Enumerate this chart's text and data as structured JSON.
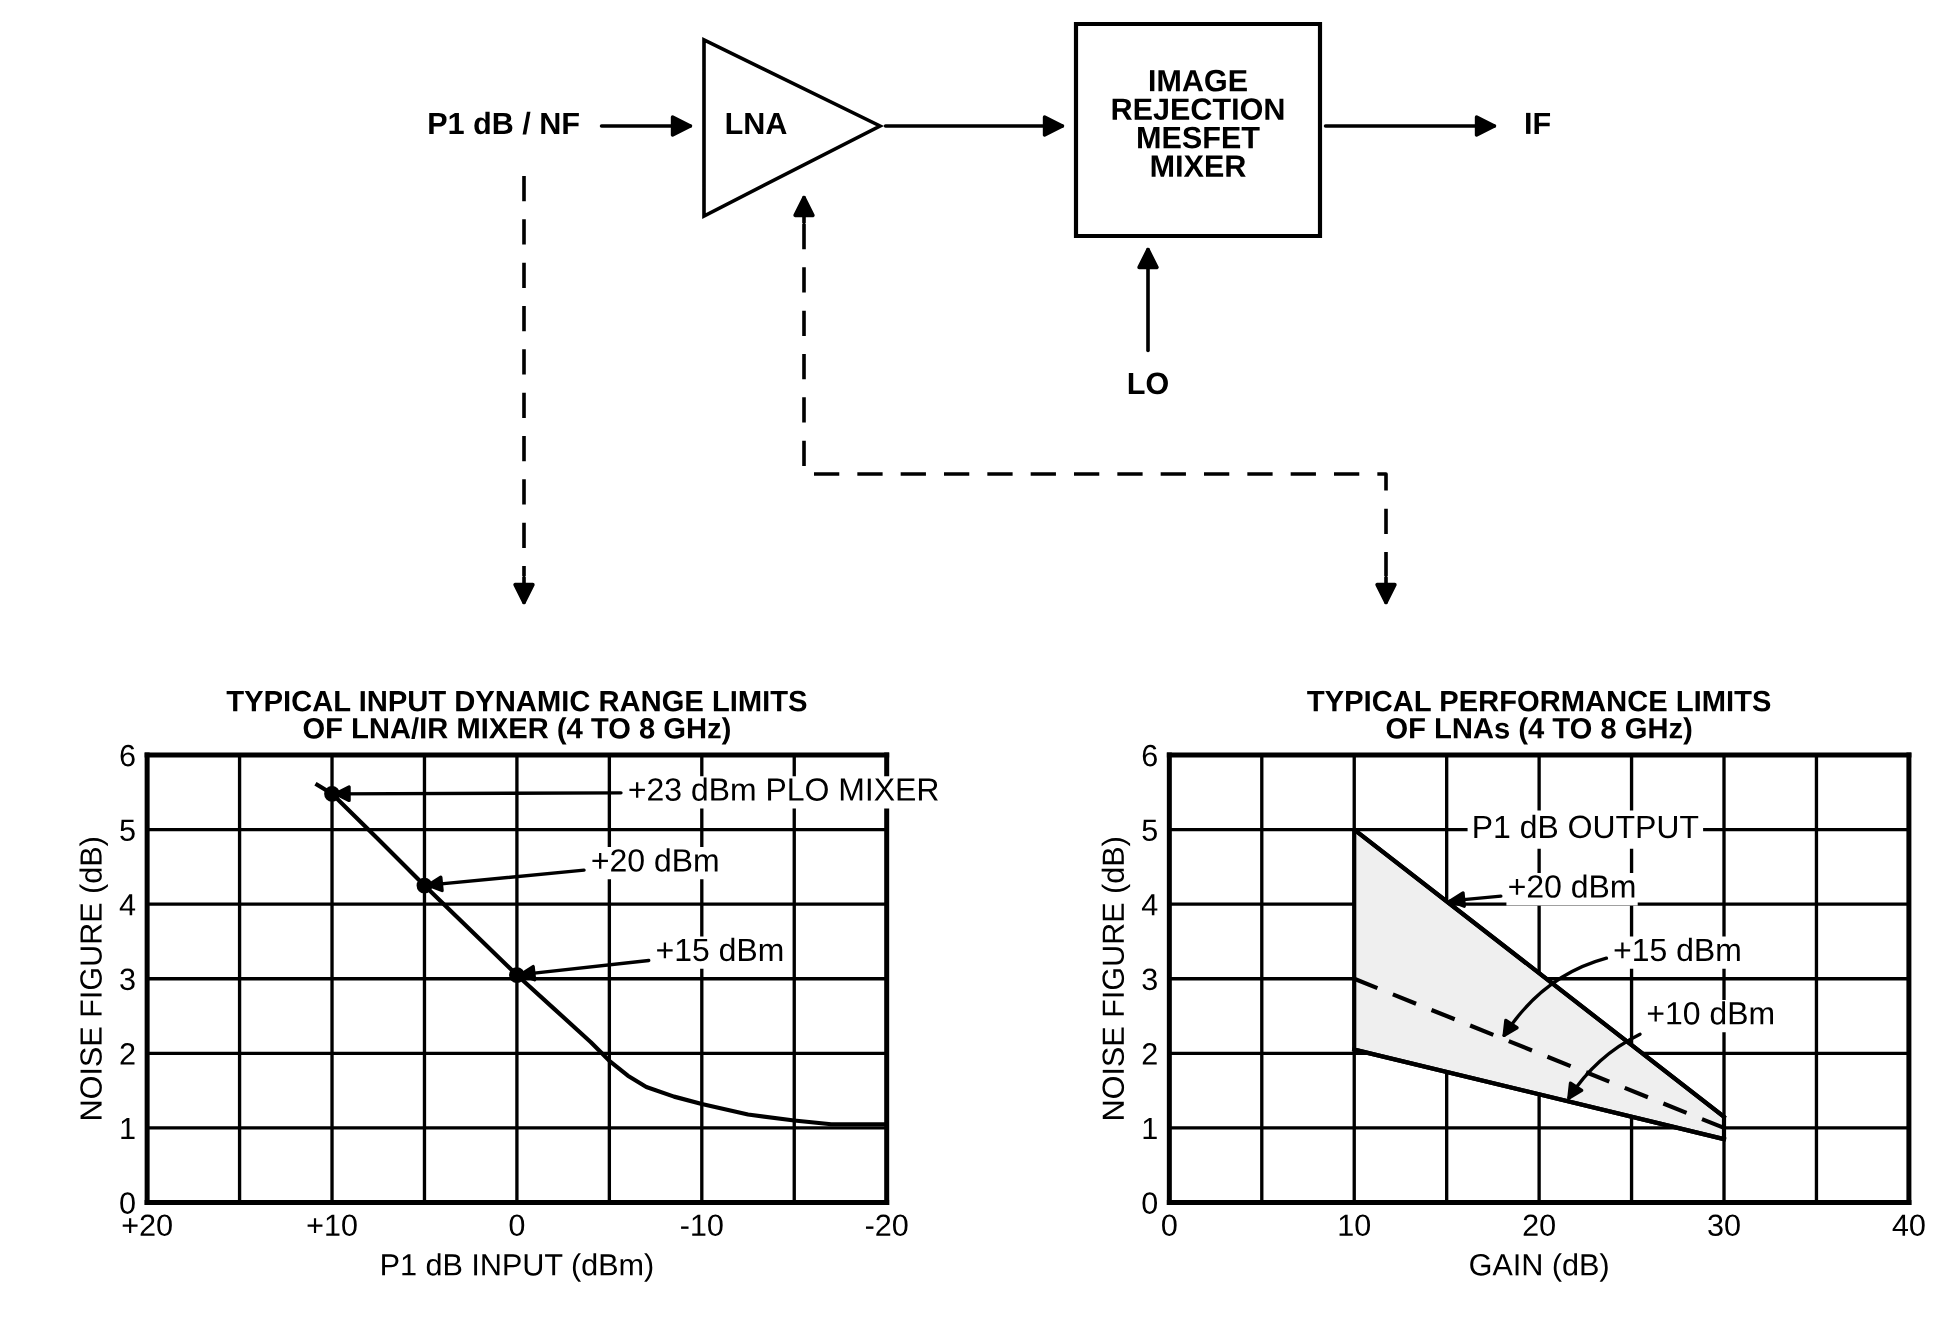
{
  "chart_data": [
    {
      "type": "other",
      "annotations": [
        "P1 dB / NF",
        "LNA",
        "IMAGE\nREJECTION\nMESFET\nMIXER",
        "IF",
        "LO"
      ]
    },
    {
      "type": "line",
      "title": "TYPICAL INPUT DYNAMIC RANGE LIMITS\nOF LNA/IR MIXER (4 TO 8 GHz)",
      "xlabel": "P1 dB INPUT (dBm)",
      "ylabel": "NOISE FIGURE (dB)",
      "xlim": [
        20,
        -20
      ],
      "ylim": [
        0,
        6
      ],
      "xticks": [
        {
          "value": 20,
          "label": "+20"
        },
        {
          "value": 15,
          "label": null
        },
        {
          "value": 10,
          "label": "+10"
        },
        {
          "value": 5,
          "label": null
        },
        0,
        {
          "value": -5,
          "label": null
        },
        -10,
        {
          "value": -15,
          "label": null
        },
        -20
      ],
      "yticks": [
        0,
        1,
        2,
        3,
        4,
        5,
        6
      ],
      "grid": true,
      "legend": false,
      "series": [
        {
          "type": "line",
          "color": "#000000",
          "line_style": "solid",
          "x": [
            10.8,
            10,
            7.5,
            5,
            2.5,
            0,
            -2,
            -4,
            -5,
            -6,
            -7,
            -8.5,
            -10,
            -12.5,
            -15,
            -17,
            -20
          ],
          "values": [
            5.6,
            5.48,
            4.87,
            4.25,
            3.65,
            3.05,
            2.6,
            2.15,
            1.9,
            1.7,
            1.55,
            1.42,
            1.32,
            1.18,
            1.1,
            1.05,
            1.05
          ]
        },
        {
          "type": "scatter",
          "color": "#000000",
          "marker": "circle",
          "x": [
            10,
            5,
            0
          ],
          "values": [
            5.48,
            4.25,
            3.05
          ]
        }
      ],
      "annotations": [
        {
          "text": "+23 dBm PLO MIXER",
          "x": 10,
          "y": 5.48
        },
        {
          "text": "+20 dBm",
          "x": 5,
          "y": 4.25
        },
        {
          "text": "+15 dBm",
          "x": 0,
          "y": 3.05
        }
      ]
    },
    {
      "type": "line",
      "title": "TYPICAL PERFORMANCE LIMITS\nOF LNAs (4 TO 8 GHz)",
      "xlabel": "GAIN (dB)",
      "ylabel": "NOISE FIGURE (dB)",
      "xlim": [
        0,
        40
      ],
      "ylim": [
        0,
        6
      ],
      "xticks": [
        0,
        {
          "value": 5,
          "label": null
        },
        10,
        {
          "value": 15,
          "label": null
        },
        20,
        {
          "value": 25,
          "label": null
        },
        30,
        {
          "value": 35,
          "label": null
        },
        40
      ],
      "yticks": [
        0,
        1,
        2,
        3,
        4,
        5,
        6
      ],
      "grid": true,
      "legend": false,
      "series": [
        {
          "type": "line",
          "color": "#000000",
          "line_style": "solid",
          "x": [
            10,
            30
          ],
          "values": [
            5,
            1.15
          ]
        },
        {
          "type": "line",
          "color": "#000000",
          "line_style": "dashed",
          "x": [
            10,
            30
          ],
          "values": [
            3,
            1.0
          ],
          "lower": [
            2.05,
            0.85
          ],
          "upper": [
            5,
            1.15
          ]
        },
        {
          "type": "line",
          "color": "#000000",
          "line_style": "solid",
          "x": [
            10,
            30
          ],
          "values": [
            2.05,
            0.85
          ]
        }
      ],
      "annotations": [
        "P1 dB OUTPUT",
        {
          "text": "+20 dBm",
          "x": 15,
          "y": 4.04
        },
        {
          "text": "+15 dBm",
          "x": 18,
          "y": 2.2
        },
        {
          "text": "+10 dBm",
          "x": 21.5,
          "y": 1.36
        }
      ]
    }
  ]
}
